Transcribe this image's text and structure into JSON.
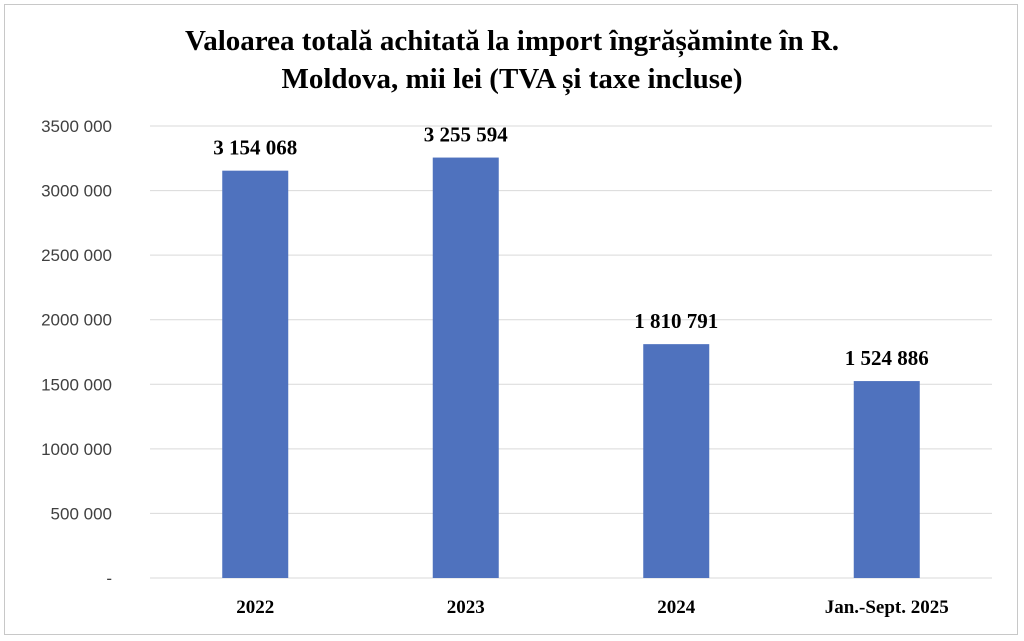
{
  "chart_data": {
    "type": "bar",
    "title_lines": [
      "Valoarea totală achitată la import îngrășăminte în R.",
      "Moldova, mii lei (TVA și taxe incluse)"
    ],
    "categories": [
      "2022",
      "2023",
      "2024",
      "Jan.-Sept. 2025"
    ],
    "values": [
      3154068,
      3255594,
      1810791,
      1524886
    ],
    "data_labels": [
      "3 154 068",
      "3 255 594",
      "1 810 791",
      "1 524 886"
    ],
    "y_ticks": [
      0,
      500000,
      1000000,
      1500000,
      2000000,
      2500000,
      3000000,
      3500000
    ],
    "y_tick_labels": [
      "-",
      "500 000",
      "1000 000",
      "1500 000",
      "2000 000",
      "2500 000",
      "3000 000",
      "3500 000"
    ],
    "ylim": [
      0,
      3500000
    ],
    "grid": true,
    "bar_color": "#4f72be",
    "grid_color": "#d9d9d9"
  }
}
